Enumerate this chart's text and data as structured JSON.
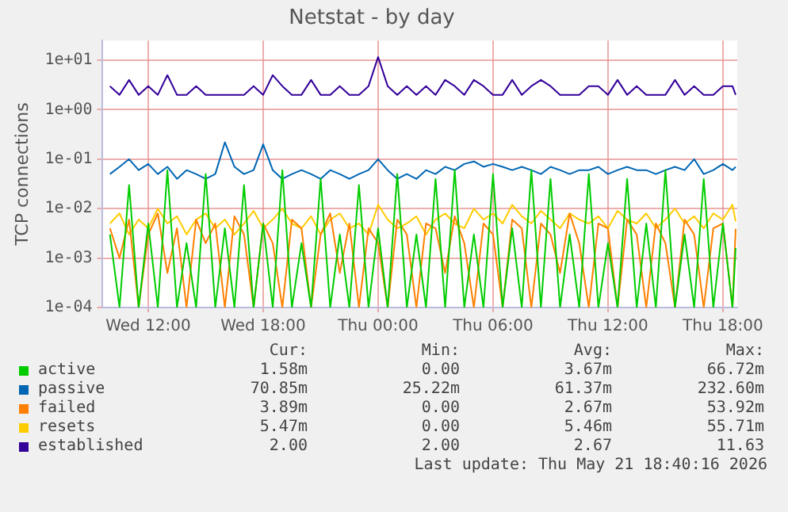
{
  "chart_data": {
    "type": "line",
    "title": "Netstat - by day",
    "ylabel": "TCP connections",
    "log": "y",
    "grid": true,
    "legend": "bottom",
    "x": [
      "2026-05-20T10:00",
      "2026-05-20T10:30",
      "2026-05-20T11:00",
      "2026-05-20T11:30",
      "2026-05-20T12:00",
      "2026-05-20T12:30",
      "2026-05-20T13:00",
      "2026-05-20T13:30",
      "2026-05-20T14:00",
      "2026-05-20T14:30",
      "2026-05-20T15:00",
      "2026-05-20T15:30",
      "2026-05-20T16:00",
      "2026-05-20T16:30",
      "2026-05-20T17:00",
      "2026-05-20T17:30",
      "2026-05-20T18:00",
      "2026-05-20T18:30",
      "2026-05-20T19:00",
      "2026-05-20T19:30",
      "2026-05-20T20:00",
      "2026-05-20T20:30",
      "2026-05-20T21:00",
      "2026-05-20T21:30",
      "2026-05-20T22:00",
      "2026-05-20T22:30",
      "2026-05-20T23:00",
      "2026-05-20T23:30",
      "2026-05-21T00:00",
      "2026-05-21T00:30",
      "2026-05-21T01:00",
      "2026-05-21T01:30",
      "2026-05-21T02:00",
      "2026-05-21T02:30",
      "2026-05-21T03:00",
      "2026-05-21T03:30",
      "2026-05-21T04:00",
      "2026-05-21T04:30",
      "2026-05-21T05:00",
      "2026-05-21T05:30",
      "2026-05-21T06:00",
      "2026-05-21T06:30",
      "2026-05-21T07:00",
      "2026-05-21T07:30",
      "2026-05-21T08:00",
      "2026-05-21T08:30",
      "2026-05-21T09:00",
      "2026-05-21T09:30",
      "2026-05-21T10:00",
      "2026-05-21T10:30",
      "2026-05-21T11:00",
      "2026-05-21T11:30",
      "2026-05-21T12:00",
      "2026-05-21T12:30",
      "2026-05-21T13:00",
      "2026-05-21T13:30",
      "2026-05-21T14:00",
      "2026-05-21T14:30",
      "2026-05-21T15:00",
      "2026-05-21T15:30",
      "2026-05-21T16:00",
      "2026-05-21T16:30",
      "2026-05-21T17:00",
      "2026-05-21T17:30",
      "2026-05-21T18:00",
      "2026-05-21T18:30",
      "2026-05-21T18:40"
    ],
    "xlim": [
      "2026-05-20T09:35",
      "2026-05-21T18:45"
    ],
    "xticks": [
      {
        "value": "2026-05-20T12:00",
        "label": "Wed 12:00"
      },
      {
        "value": "2026-05-20T18:00",
        "label": "Wed 18:00"
      },
      {
        "value": "2026-05-21T00:00",
        "label": "Thu 00:00"
      },
      {
        "value": "2026-05-21T06:00",
        "label": "Thu 06:00"
      },
      {
        "value": "2026-05-21T12:00",
        "label": "Thu 12:00"
      },
      {
        "value": "2026-05-21T18:00",
        "label": "Thu 18:00"
      }
    ],
    "ylim": [
      0.0001,
      25
    ],
    "yticks": [
      {
        "value": 0.0001,
        "label": "1e-04"
      },
      {
        "value": 0.001,
        "label": "1e-03"
      },
      {
        "value": 0.01,
        "label": "1e-02"
      },
      {
        "value": 0.1,
        "label": "1e-01"
      },
      {
        "value": 1,
        "label": "1e+00"
      },
      {
        "value": 10,
        "label": "1e+01"
      }
    ],
    "series": [
      {
        "name": "active",
        "color": "#00cc00",
        "values": [
          0.003,
          0.0001,
          0.03,
          0.0001,
          0.005,
          0.0001,
          0.06,
          0.0001,
          0.002,
          0.0001,
          0.05,
          0.0001,
          0.004,
          0.0001,
          0.03,
          0.0001,
          0.005,
          0.0001,
          0.06,
          0.0001,
          0.002,
          0.0001,
          0.04,
          0.0001,
          0.003,
          0.0001,
          0.03,
          0.0001,
          0.004,
          0.0001,
          0.05,
          0.0001,
          0.003,
          0.0001,
          0.04,
          0.0001,
          0.06,
          0.0001,
          0.003,
          0.0001,
          0.05,
          0.0001,
          0.004,
          0.0001,
          0.06,
          0.0001,
          0.04,
          0.0001,
          0.003,
          0.0001,
          0.05,
          0.0001,
          0.002,
          0.0001,
          0.04,
          0.0001,
          0.005,
          0.0001,
          0.06,
          0.0001,
          0.003,
          0.0001,
          0.04,
          0.0001,
          0.005,
          0.0001,
          0.0016
        ]
      },
      {
        "name": "passive",
        "color": "#0066b3",
        "values": [
          0.05,
          0.07,
          0.1,
          0.06,
          0.08,
          0.05,
          0.07,
          0.04,
          0.06,
          0.05,
          0.04,
          0.05,
          0.22,
          0.07,
          0.05,
          0.06,
          0.2,
          0.06,
          0.04,
          0.05,
          0.06,
          0.05,
          0.04,
          0.06,
          0.05,
          0.04,
          0.05,
          0.06,
          0.1,
          0.06,
          0.04,
          0.05,
          0.04,
          0.06,
          0.05,
          0.07,
          0.06,
          0.08,
          0.09,
          0.07,
          0.08,
          0.07,
          0.06,
          0.07,
          0.06,
          0.05,
          0.07,
          0.06,
          0.05,
          0.06,
          0.06,
          0.07,
          0.05,
          0.06,
          0.07,
          0.06,
          0.06,
          0.05,
          0.06,
          0.07,
          0.06,
          0.1,
          0.05,
          0.06,
          0.08,
          0.06,
          0.07
        ]
      },
      {
        "name": "failed",
        "color": "#ff8000",
        "values": [
          0.004,
          0.001,
          0.006,
          0.0001,
          0.003,
          0.008,
          0.0005,
          0.004,
          0.0001,
          0.006,
          0.002,
          0.005,
          0.0001,
          0.007,
          0.003,
          0.0001,
          0.005,
          0.002,
          0.0001,
          0.006,
          0.004,
          0.0001,
          0.003,
          0.008,
          0.0005,
          0.005,
          0.0001,
          0.004,
          0.002,
          0.0001,
          0.006,
          0.003,
          0.0001,
          0.005,
          0.004,
          0.0005,
          0.007,
          0.002,
          0.0001,
          0.005,
          0.003,
          0.0001,
          0.006,
          0.004,
          0.0001,
          0.005,
          0.003,
          0.0005,
          0.008,
          0.002,
          0.0001,
          0.005,
          0.004,
          0.0001,
          0.006,
          0.003,
          0.0001,
          0.005,
          0.002,
          0.0001,
          0.006,
          0.003,
          0.0001,
          0.004,
          0.005,
          0.0001,
          0.0039
        ]
      },
      {
        "name": "resets",
        "color": "#ffcc00",
        "values": [
          0.005,
          0.008,
          0.003,
          0.006,
          0.004,
          0.01,
          0.005,
          0.007,
          0.003,
          0.006,
          0.008,
          0.004,
          0.006,
          0.003,
          0.005,
          0.009,
          0.004,
          0.006,
          0.01,
          0.005,
          0.004,
          0.007,
          0.003,
          0.006,
          0.008,
          0.004,
          0.005,
          0.003,
          0.012,
          0.006,
          0.004,
          0.005,
          0.007,
          0.003,
          0.006,
          0.008,
          0.005,
          0.004,
          0.01,
          0.006,
          0.008,
          0.005,
          0.012,
          0.007,
          0.005,
          0.009,
          0.006,
          0.004,
          0.008,
          0.006,
          0.005,
          0.007,
          0.004,
          0.009,
          0.006,
          0.005,
          0.008,
          0.004,
          0.006,
          0.01,
          0.005,
          0.007,
          0.004,
          0.008,
          0.006,
          0.012,
          0.0055
        ]
      },
      {
        "name": "established",
        "color": "#330099",
        "values": [
          3,
          2,
          4,
          2,
          3,
          2,
          5,
          2,
          2,
          3,
          2,
          2,
          2,
          2,
          2,
          3,
          2,
          5,
          3,
          2,
          2,
          4,
          2,
          2,
          3,
          2,
          2,
          3,
          11.63,
          3,
          2,
          3,
          2,
          3,
          2,
          4,
          3,
          2,
          4,
          3,
          2,
          2,
          4,
          2,
          3,
          4,
          3,
          2,
          2,
          2,
          3,
          3,
          2,
          4,
          2,
          3,
          2,
          2,
          2,
          4,
          2,
          3,
          2,
          2,
          3,
          3,
          2
        ]
      }
    ],
    "annotations": [
      "Cur:",
      "Min:",
      "Avg:",
      "Max:",
      "1.58m",
      "0.00",
      "3.67m",
      "66.72m",
      "70.85m",
      "25.22m",
      "61.37m",
      "232.60m",
      "3.89m",
      "0.00",
      "2.67m",
      "53.92m",
      "5.47m",
      "0.00",
      "5.46m",
      "55.71m",
      "2.00",
      "2.00",
      "2.67",
      "11.63",
      "Last update: Thu May 21 18:40:16 2026"
    ]
  }
}
